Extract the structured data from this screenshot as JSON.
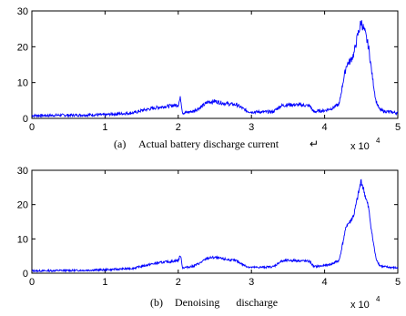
{
  "chart_data": [
    {
      "type": "line",
      "caption_label": "(a)",
      "caption_text": "Actual battery discharge current",
      "caption_mark": "↵",
      "x_scale_base": "x 10",
      "x_scale_exp": "4",
      "xlim": [
        0,
        5
      ],
      "ylim": [
        0,
        30
      ],
      "xticks": [
        "0",
        "1",
        "2",
        "3",
        "4",
        "5"
      ],
      "yticks": [
        "0",
        "10",
        "20",
        "30"
      ],
      "color": "#0000ff",
      "grid": false,
      "noise": 0.35,
      "series": [
        {
          "x": [
            0,
            0.2,
            0.4,
            0.6,
            0.8,
            1.0,
            1.1,
            1.2,
            1.3,
            1.4,
            1.5,
            1.6,
            1.7,
            1.8,
            1.9,
            2.0,
            2.03,
            2.06,
            2.1,
            2.2,
            2.3,
            2.4,
            2.5,
            2.6,
            2.7,
            2.8,
            2.9,
            2.95,
            3.0,
            3.1,
            3.2,
            3.3,
            3.4,
            3.5,
            3.6,
            3.7,
            3.8,
            3.85,
            3.9,
            4.0,
            4.1,
            4.2,
            4.25,
            4.3,
            4.35,
            4.4,
            4.45,
            4.5,
            4.55,
            4.6,
            4.65,
            4.7,
            4.75,
            4.8,
            4.9,
            5.0
          ],
          "y": [
            0.8,
            0.8,
            0.9,
            0.9,
            1.0,
            1.0,
            1.2,
            1.3,
            1.4,
            1.6,
            2.2,
            2.6,
            3.0,
            3.3,
            3.5,
            3.8,
            5.8,
            1.5,
            1.6,
            2.0,
            3.0,
            4.5,
            4.8,
            4.3,
            4.0,
            3.8,
            2.5,
            2.0,
            1.8,
            1.8,
            1.8,
            1.9,
            3.5,
            3.8,
            3.8,
            3.7,
            3.5,
            1.8,
            2.0,
            2.2,
            2.8,
            4.0,
            10,
            15,
            16,
            18,
            23,
            27,
            24,
            20,
            12,
            5,
            2.5,
            2.0,
            1.8,
            1.5
          ]
        }
      ]
    },
    {
      "type": "line",
      "caption_label": "(b)",
      "caption_text": "Denoising      discharge",
      "caption_mark": "",
      "x_scale_base": "x 10",
      "x_scale_exp": "4",
      "xlim": [
        0,
        5
      ],
      "ylim": [
        0,
        30
      ],
      "xticks": [
        "0",
        "1",
        "2",
        "3",
        "4",
        "5"
      ],
      "yticks": [
        "0",
        "10",
        "20",
        "30"
      ],
      "color": "#0000ff",
      "grid": false,
      "noise": 0.25,
      "series": [
        {
          "x": [
            0,
            0.2,
            0.4,
            0.6,
            0.8,
            1.0,
            1.1,
            1.2,
            1.3,
            1.4,
            1.5,
            1.6,
            1.7,
            1.8,
            1.9,
            2.0,
            2.03,
            2.06,
            2.1,
            2.2,
            2.3,
            2.4,
            2.5,
            2.6,
            2.7,
            2.8,
            2.9,
            2.95,
            3.0,
            3.1,
            3.2,
            3.3,
            3.4,
            3.5,
            3.6,
            3.7,
            3.8,
            3.85,
            3.9,
            4.0,
            4.1,
            4.2,
            4.25,
            4.3,
            4.35,
            4.4,
            4.45,
            4.5,
            4.55,
            4.6,
            4.65,
            4.7,
            4.75,
            4.8,
            4.9,
            5.0
          ],
          "y": [
            0.7,
            0.7,
            0.8,
            0.8,
            0.9,
            1.0,
            1.1,
            1.2,
            1.3,
            1.5,
            2.0,
            2.5,
            2.9,
            3.2,
            3.4,
            3.7,
            5.3,
            1.6,
            1.7,
            2.0,
            3.0,
            4.4,
            4.6,
            4.2,
            3.9,
            3.6,
            2.3,
            1.9,
            1.7,
            1.7,
            1.8,
            1.9,
            3.4,
            3.7,
            3.7,
            3.6,
            3.4,
            1.9,
            2.0,
            2.2,
            2.7,
            3.8,
            9,
            14,
            15,
            17,
            22,
            27,
            23,
            19,
            11,
            4.5,
            2.3,
            1.9,
            1.7,
            1.5
          ]
        }
      ]
    }
  ]
}
